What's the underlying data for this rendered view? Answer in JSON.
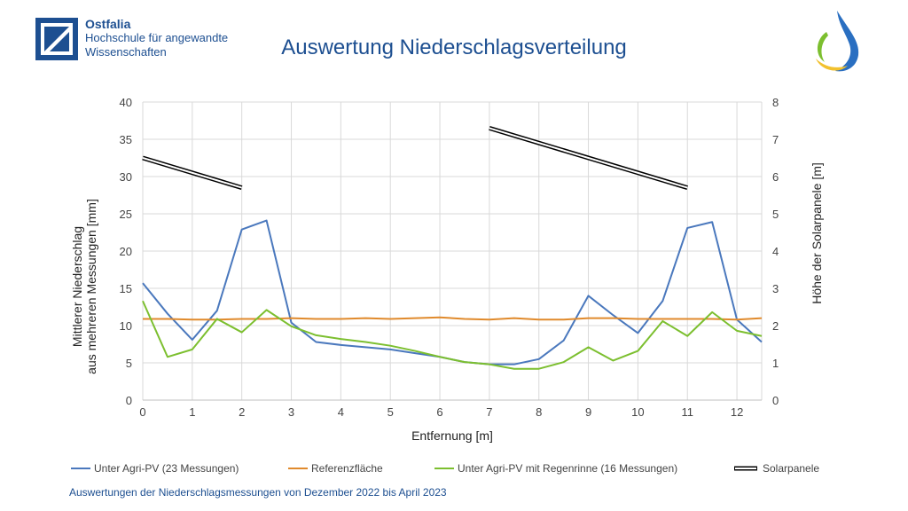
{
  "header": {
    "org_name": "Ostfalia",
    "org_line1": "Hochschule für angewandte",
    "org_line2": "Wissenschaften",
    "title": "Auswertung Niederschlagsverteilung"
  },
  "footnote": "Auswertungen der Niederschlagsmessungen von Dezember 2022 bis April 2023",
  "colors": {
    "brand": "#1d4f91",
    "agri_pv": "#4a78bd",
    "referenz": "#e08a2c",
    "regenrinne": "#7cbf2f",
    "solar": "#000000",
    "grid": "#d9d9d9"
  },
  "chart_data": {
    "type": "line",
    "xlabel": "Entfernung [m]",
    "ylabel_line1": "Mittlerer Niederschlag",
    "ylabel_line2": "aus mehreren Messungen [mm]",
    "y2label": "Höhe der Solarpanele [m]",
    "xlim": [
      0,
      12.5
    ],
    "ylim": [
      0,
      40
    ],
    "y2lim": [
      0,
      8
    ],
    "xticks": [
      "0",
      "1",
      "2",
      "3",
      "4",
      "5",
      "6",
      "7",
      "8",
      "9",
      "10",
      "11",
      "12"
    ],
    "yticks": [
      "0",
      "5",
      "10",
      "15",
      "20",
      "25",
      "30",
      "35",
      "40"
    ],
    "y2ticks": [
      "0",
      "1",
      "2",
      "3",
      "4",
      "5",
      "6",
      "7",
      "8"
    ],
    "grid": true,
    "legend_position": "bottom",
    "x": [
      0,
      0.5,
      1,
      1.5,
      2,
      2.5,
      3,
      3.5,
      4,
      4.5,
      5,
      5.5,
      6,
      6.5,
      7,
      7.5,
      8,
      8.5,
      9,
      9.5,
      10,
      10.5,
      11,
      11.5,
      12,
      12.5
    ],
    "series": [
      {
        "name": "Unter Agri-PV (23 Messungen)",
        "axis": "left",
        "values": [
          15.7,
          11.6,
          8.1,
          12.0,
          22.9,
          24.1,
          10.4,
          7.8,
          7.4,
          7.1,
          6.8,
          6.3,
          5.8,
          5.1,
          4.8,
          4.8,
          5.5,
          8.0,
          14.0,
          11.4,
          9.0,
          13.3,
          23.1,
          23.9,
          10.8,
          7.8
        ]
      },
      {
        "name": "Referenzfläche",
        "axis": "left",
        "values": [
          10.9,
          10.9,
          10.8,
          10.8,
          10.9,
          10.9,
          11.0,
          10.9,
          10.9,
          11.0,
          10.9,
          11.0,
          11.1,
          10.9,
          10.8,
          11.0,
          10.8,
          10.8,
          11.0,
          11.0,
          10.9,
          10.9,
          10.9,
          10.9,
          10.8,
          11.0
        ]
      },
      {
        "name": "Unter Agri-PV mit Regenrinne (16 Messungen)",
        "axis": "left",
        "values": [
          13.3,
          5.8,
          6.8,
          10.9,
          9.1,
          12.1,
          9.9,
          8.7,
          8.2,
          7.8,
          7.3,
          6.6,
          5.8,
          5.1,
          4.8,
          4.2,
          4.2,
          5.1,
          7.1,
          5.3,
          6.6,
          10.6,
          8.6,
          11.8,
          9.3,
          8.6
        ]
      },
      {
        "name": "Solarpanele",
        "axis": "right",
        "segments": [
          [
            [
              0,
              6.5
            ],
            [
              2,
              5.7
            ]
          ],
          [
            [
              7,
              7.3
            ],
            [
              11,
              5.7
            ]
          ]
        ]
      }
    ]
  }
}
